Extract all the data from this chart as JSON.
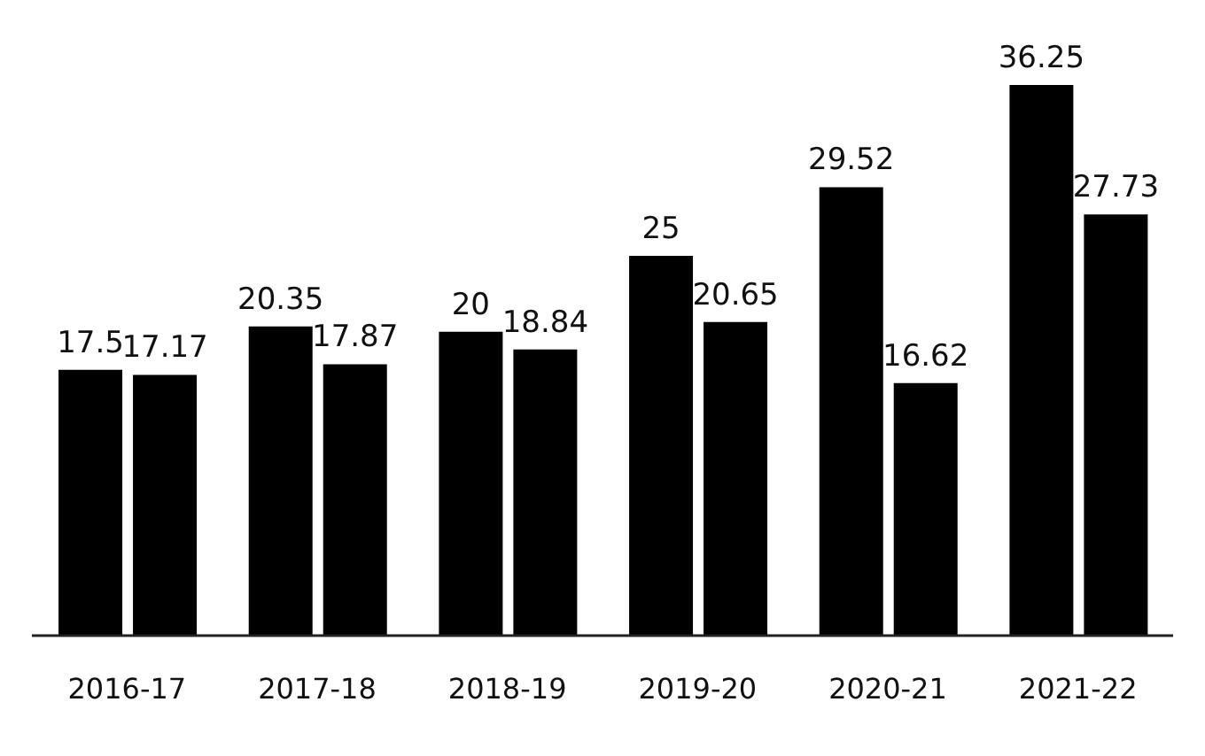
{
  "chart_data": {
    "type": "bar",
    "categories": [
      "2016-17",
      "2017-18",
      "2018-19",
      "2019-20",
      "2020-21",
      "2021-22"
    ],
    "series": [
      {
        "color": "#000000",
        "values": [
          17.5,
          20.35,
          20,
          25,
          29.52,
          36.25
        ]
      },
      {
        "color": "#000000",
        "values": [
          17.17,
          17.87,
          18.84,
          20.65,
          16.62,
          27.73
        ]
      }
    ],
    "data_labels": true,
    "grid": false,
    "legend": false
  }
}
